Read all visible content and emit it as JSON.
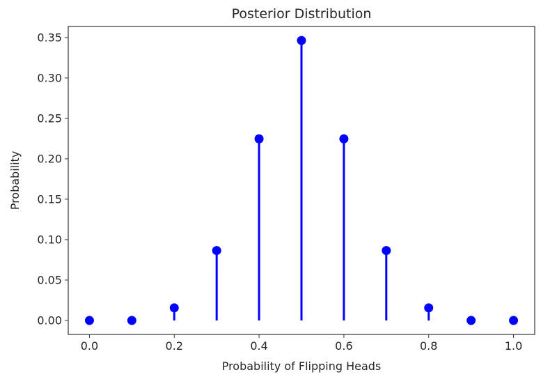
{
  "chart_data": {
    "type": "stem",
    "title": "Posterior Distribution",
    "xlabel": "Probability of Flipping Heads",
    "ylabel": "Probability",
    "x": [
      0.0,
      0.1,
      0.2,
      0.3,
      0.4,
      0.5,
      0.6,
      0.7,
      0.8,
      0.9,
      1.0
    ],
    "y": [
      0.0,
      0.0,
      0.0156,
      0.0865,
      0.2247,
      0.3464,
      0.2247,
      0.0865,
      0.0156,
      0.0,
      0.0
    ],
    "xlim": [
      -0.05,
      1.05
    ],
    "ylim": [
      -0.0173,
      0.3637
    ],
    "xticks": [
      "0.0",
      "0.2",
      "0.4",
      "0.6",
      "0.8",
      "1.0"
    ],
    "xtick_values": [
      0.0,
      0.2,
      0.4,
      0.6,
      0.8,
      1.0
    ],
    "yticks": [
      "0.00",
      "0.05",
      "0.10",
      "0.15",
      "0.20",
      "0.25",
      "0.30",
      "0.35"
    ],
    "ytick_values": [
      0.0,
      0.05,
      0.1,
      0.15,
      0.2,
      0.25,
      0.3,
      0.35
    ],
    "color": "#0000ff",
    "grid": false
  }
}
